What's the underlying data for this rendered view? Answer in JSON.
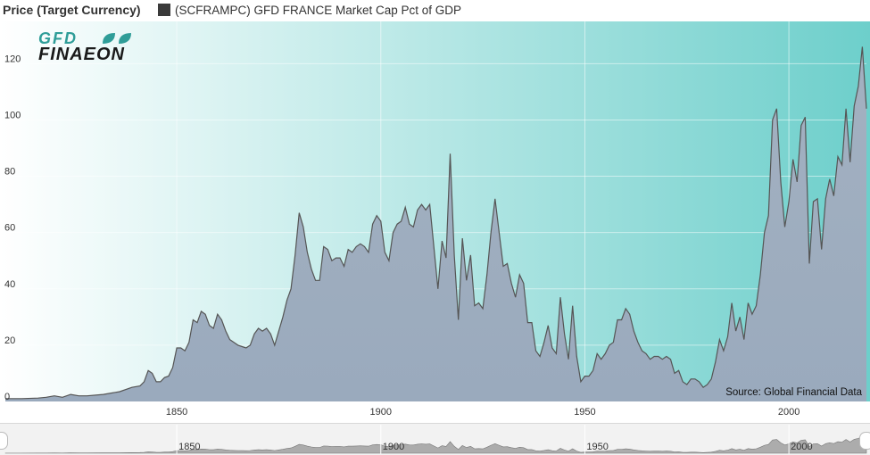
{
  "legend": {
    "y_caption": "Price (Target Currency)",
    "series_label": "(SCFRAMPC) GFD FRANCE Market Cap Pct of GDP",
    "swatch_color": "#3a3a3a"
  },
  "logo": {
    "line1": "GFD",
    "line2": "FINAEON"
  },
  "source_note": "Source: Global Financial Data",
  "navigator": {
    "tick_labels": [
      "1850",
      "1900",
      "1950",
      "2000"
    ]
  },
  "colors": {
    "bg_left": "#c7d2d9",
    "bg_right": "#6dcfcb",
    "area_top": "#a3b1c1",
    "area_bottom": "#9aaabd",
    "line": "#555555"
  },
  "chart_data": {
    "type": "area",
    "title": "",
    "xlabel": "",
    "ylabel": "Price (Target Currency)",
    "xlim": [
      1808,
      2019
    ],
    "ylim": [
      0,
      135
    ],
    "y_ticks": [
      0,
      20,
      40,
      60,
      80,
      100,
      120
    ],
    "x_ticks": [
      1850,
      1900,
      1950,
      2000
    ],
    "grid": true,
    "series": [
      {
        "name": "(SCFRAMPC) GFD FRANCE Market Cap Pct of GDP",
        "points": [
          [
            1808,
            1
          ],
          [
            1812,
            1
          ],
          [
            1816,
            1.2
          ],
          [
            1818,
            1.5
          ],
          [
            1820,
            2
          ],
          [
            1822,
            1.5
          ],
          [
            1824,
            2.5
          ],
          [
            1826,
            2
          ],
          [
            1828,
            2
          ],
          [
            1832,
            2.5
          ],
          [
            1836,
            3.5
          ],
          [
            1839,
            5
          ],
          [
            1841,
            5.5
          ],
          [
            1842,
            7
          ],
          [
            1843,
            11
          ],
          [
            1844,
            10
          ],
          [
            1845,
            7
          ],
          [
            1846,
            7
          ],
          [
            1847,
            8.5
          ],
          [
            1848,
            9
          ],
          [
            1849,
            12
          ],
          [
            1850,
            19
          ],
          [
            1851,
            19
          ],
          [
            1852,
            18
          ],
          [
            1853,
            21
          ],
          [
            1854,
            29
          ],
          [
            1855,
            28
          ],
          [
            1856,
            32
          ],
          [
            1857,
            31
          ],
          [
            1858,
            27
          ],
          [
            1859,
            26
          ],
          [
            1860,
            31
          ],
          [
            1861,
            29
          ],
          [
            1862,
            25
          ],
          [
            1863,
            22
          ],
          [
            1864,
            21
          ],
          [
            1865,
            20
          ],
          [
            1866,
            19.5
          ],
          [
            1867,
            19
          ],
          [
            1868,
            20
          ],
          [
            1869,
            24
          ],
          [
            1870,
            26
          ],
          [
            1871,
            25
          ],
          [
            1872,
            26
          ],
          [
            1873,
            24
          ],
          [
            1874,
            20
          ],
          [
            1875,
            25
          ],
          [
            1876,
            30
          ],
          [
            1877,
            36
          ],
          [
            1878,
            40
          ],
          [
            1879,
            52
          ],
          [
            1880,
            67
          ],
          [
            1881,
            62
          ],
          [
            1882,
            53
          ],
          [
            1883,
            47
          ],
          [
            1884,
            43
          ],
          [
            1885,
            43
          ],
          [
            1886,
            55
          ],
          [
            1887,
            54
          ],
          [
            1888,
            50
          ],
          [
            1889,
            51
          ],
          [
            1890,
            51
          ],
          [
            1891,
            48
          ],
          [
            1892,
            54
          ],
          [
            1893,
            53
          ],
          [
            1894,
            55
          ],
          [
            1895,
            56
          ],
          [
            1896,
            55
          ],
          [
            1897,
            53
          ],
          [
            1898,
            63
          ],
          [
            1899,
            66
          ],
          [
            1900,
            64
          ],
          [
            1901,
            53
          ],
          [
            1902,
            50
          ],
          [
            1903,
            60
          ],
          [
            1904,
            63
          ],
          [
            1905,
            64
          ],
          [
            1906,
            69
          ],
          [
            1907,
            63
          ],
          [
            1908,
            62
          ],
          [
            1909,
            68
          ],
          [
            1910,
            70
          ],
          [
            1911,
            68
          ],
          [
            1912,
            70
          ],
          [
            1913,
            55
          ],
          [
            1914,
            40
          ],
          [
            1915,
            57
          ],
          [
            1916,
            51
          ],
          [
            1917,
            88
          ],
          [
            1918,
            52
          ],
          [
            1919,
            29
          ],
          [
            1920,
            58
          ],
          [
            1921,
            43
          ],
          [
            1922,
            52
          ],
          [
            1923,
            34
          ],
          [
            1924,
            35
          ],
          [
            1925,
            33
          ],
          [
            1926,
            45
          ],
          [
            1927,
            60
          ],
          [
            1928,
            72
          ],
          [
            1929,
            60
          ],
          [
            1930,
            48
          ],
          [
            1931,
            49
          ],
          [
            1932,
            42
          ],
          [
            1933,
            37
          ],
          [
            1934,
            45
          ],
          [
            1935,
            42
          ],
          [
            1936,
            28
          ],
          [
            1937,
            28
          ],
          [
            1938,
            18
          ],
          [
            1939,
            16
          ],
          [
            1940,
            21
          ],
          [
            1941,
            27
          ],
          [
            1942,
            19
          ],
          [
            1943,
            17
          ],
          [
            1944,
            37
          ],
          [
            1945,
            24
          ],
          [
            1946,
            15
          ],
          [
            1947,
            34
          ],
          [
            1948,
            16
          ],
          [
            1949,
            7
          ],
          [
            1950,
            9
          ],
          [
            1951,
            9
          ],
          [
            1952,
            11
          ],
          [
            1953,
            17
          ],
          [
            1954,
            15
          ],
          [
            1955,
            17
          ],
          [
            1956,
            20
          ],
          [
            1957,
            21
          ],
          [
            1958,
            29
          ],
          [
            1959,
            29
          ],
          [
            1960,
            33
          ],
          [
            1961,
            31
          ],
          [
            1962,
            25
          ],
          [
            1963,
            21
          ],
          [
            1964,
            18
          ],
          [
            1965,
            17
          ],
          [
            1966,
            15
          ],
          [
            1967,
            16
          ],
          [
            1968,
            16
          ],
          [
            1969,
            15
          ],
          [
            1970,
            16
          ],
          [
            1971,
            15
          ],
          [
            1972,
            10
          ],
          [
            1973,
            11
          ],
          [
            1974,
            7
          ],
          [
            1975,
            6
          ],
          [
            1976,
            8
          ],
          [
            1977,
            8
          ],
          [
            1978,
            7
          ],
          [
            1979,
            5
          ],
          [
            1980,
            6
          ],
          [
            1981,
            8
          ],
          [
            1982,
            14
          ],
          [
            1983,
            22
          ],
          [
            1984,
            18
          ],
          [
            1985,
            23
          ],
          [
            1986,
            35
          ],
          [
            1987,
            25
          ],
          [
            1988,
            30
          ],
          [
            1989,
            22
          ],
          [
            1990,
            35
          ],
          [
            1991,
            31
          ],
          [
            1992,
            34
          ],
          [
            1993,
            45
          ],
          [
            1994,
            60
          ],
          [
            1995,
            66
          ],
          [
            1996,
            100
          ],
          [
            1997,
            104
          ],
          [
            1998,
            78
          ],
          [
            1999,
            62
          ],
          [
            2000,
            71
          ],
          [
            2001,
            86
          ],
          [
            2002,
            78
          ],
          [
            2003,
            98
          ],
          [
            2004,
            101
          ],
          [
            2005,
            49
          ],
          [
            2006,
            71
          ],
          [
            2007,
            72
          ],
          [
            2008,
            54
          ],
          [
            2009,
            72
          ],
          [
            2010,
            79
          ],
          [
            2011,
            73
          ],
          [
            2012,
            87
          ],
          [
            2013,
            84
          ],
          [
            2014,
            104
          ],
          [
            2015,
            85
          ],
          [
            2016,
            105
          ],
          [
            2017,
            112
          ],
          [
            2018,
            126
          ],
          [
            2019,
            104
          ]
        ]
      }
    ]
  }
}
